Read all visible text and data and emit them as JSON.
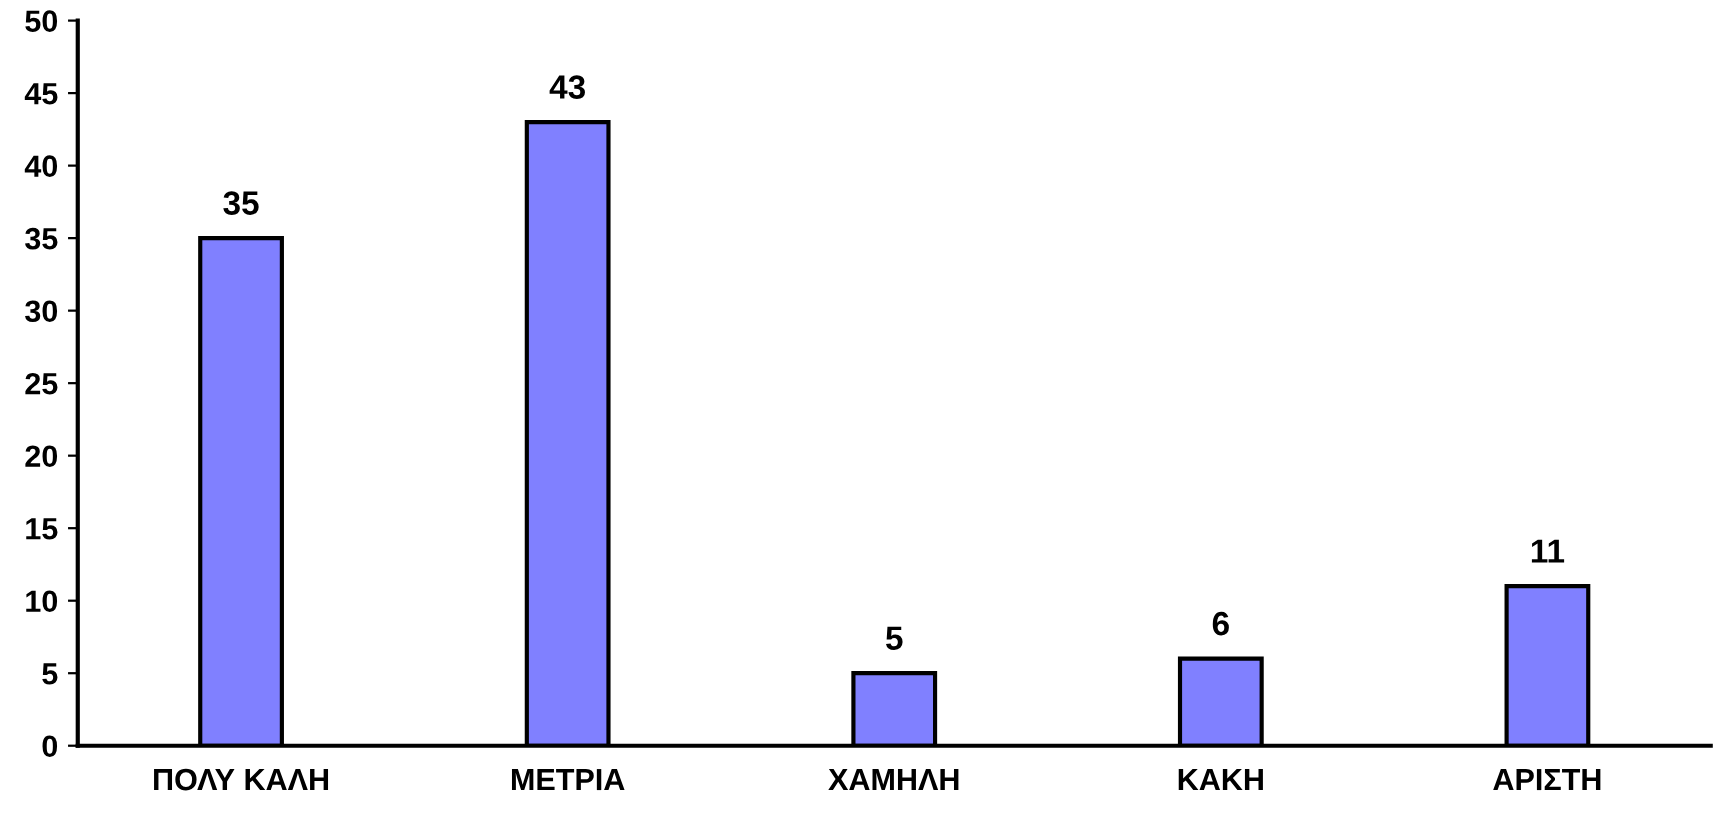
{
  "chart_data": {
    "type": "bar",
    "categories": [
      "ΠΟΛΥ ΚΑΛΗ",
      "ΜΕΤΡΙΑ",
      "ΧΑΜΗΛΗ",
      "ΚΑΚΗ",
      "ΑΡΙΣΤΗ"
    ],
    "values": [
      35,
      43,
      5,
      6,
      11
    ],
    "color": "#8080ff",
    "ylim": [
      0,
      50
    ],
    "yticks": [
      0,
      5,
      10,
      15,
      20,
      25,
      30,
      35,
      40,
      45,
      50
    ],
    "data_labels": true,
    "grid": false,
    "legend": false
  }
}
